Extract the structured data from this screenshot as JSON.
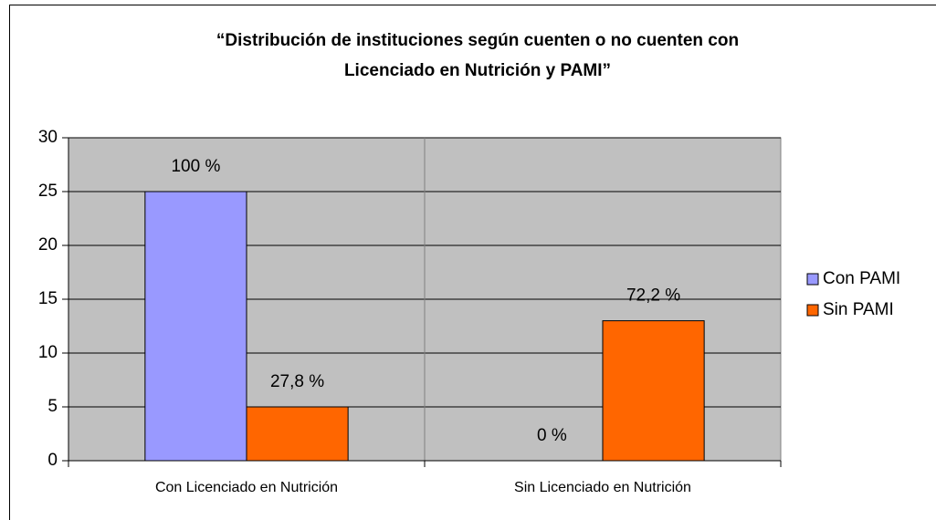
{
  "chart_data": {
    "type": "bar",
    "title": [
      "“Distribución de instituciones según  cuenten o no cuenten con",
      "Licenciado en Nutrición y PAMI”"
    ],
    "categories": [
      "Con Licenciado en Nutrición",
      "Sin Licenciado en Nutrición"
    ],
    "series": [
      {
        "name": "Con PAMI",
        "color": "#9999ff",
        "values": [
          25,
          0
        ],
        "value_labels": [
          "100 %",
          "0 %"
        ]
      },
      {
        "name": "Sin PAMI",
        "color": "#ff6600",
        "values": [
          5,
          13
        ],
        "value_labels": [
          "27,8 %",
          "72,2 %"
        ]
      }
    ],
    "ylim": [
      0,
      30
    ],
    "yticks": [
      0,
      5,
      10,
      15,
      20,
      25,
      30
    ],
    "grid": true,
    "legend": "right"
  }
}
